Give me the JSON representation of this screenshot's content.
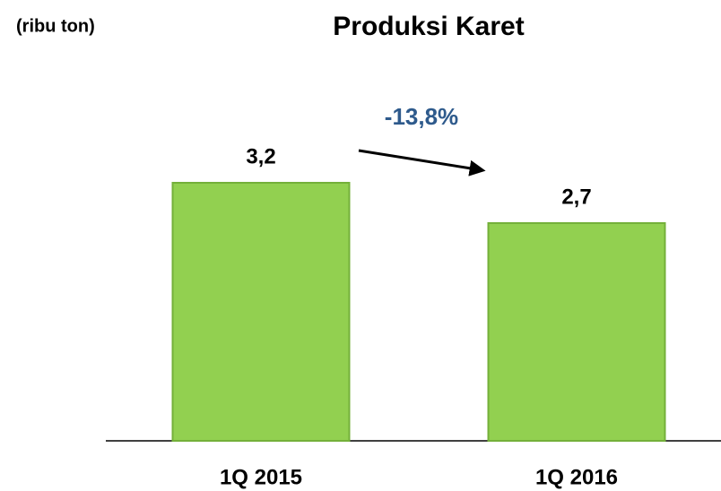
{
  "chart_data": {
    "type": "bar",
    "title": "Produksi Karet",
    "y_label": "(ribu ton)",
    "categories": [
      "1Q 2015",
      "1Q 2016"
    ],
    "values": [
      3.2,
      2.7
    ],
    "value_labels": [
      "3,2",
      "2,7"
    ],
    "color": "#92d050",
    "ylim": [
      0,
      4
    ],
    "annotation": "-13,8%",
    "annotation_color": "#2e5a8c"
  }
}
